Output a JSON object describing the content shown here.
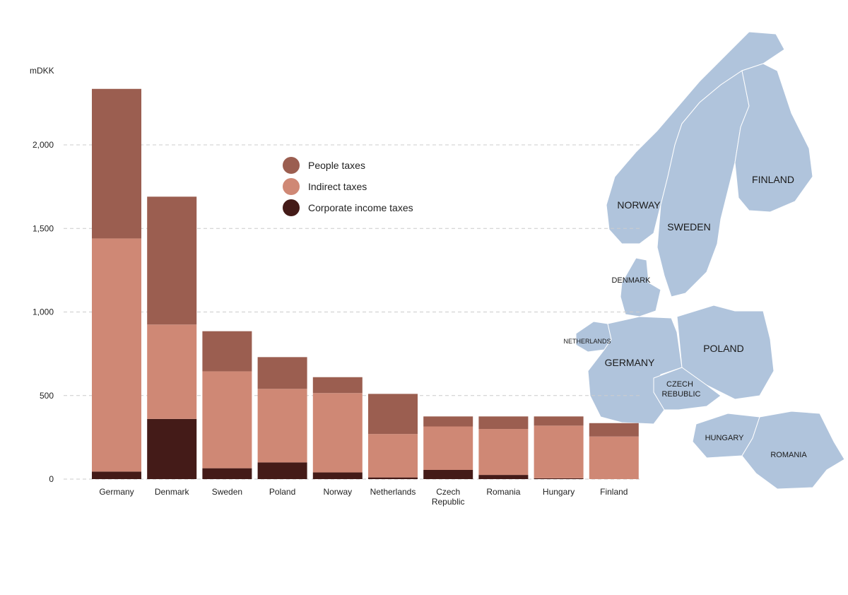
{
  "chart_data": {
    "type": "bar",
    "stacked": true,
    "unit_label": "mDKK",
    "ylim": [
      0,
      2400
    ],
    "yticks": [
      0,
      500,
      1000,
      1500,
      2000
    ],
    "ytick_labels": [
      "0",
      "500",
      "1,000",
      "1,500",
      "2,000"
    ],
    "grid": true,
    "legend_position": "top-center",
    "categories": [
      [
        "Germany"
      ],
      [
        "Denmark"
      ],
      [
        "Sweden"
      ],
      [
        "Poland"
      ],
      [
        "Norway"
      ],
      [
        "Netherlands"
      ],
      [
        "Czech",
        "Republic"
      ],
      [
        "Romania"
      ],
      [
        "Hungary"
      ],
      [
        "Finland"
      ]
    ],
    "series": [
      {
        "name": "Corporate income taxes",
        "color": "#441b18",
        "values": [
          45,
          360,
          65,
          100,
          40,
          10,
          55,
          25,
          5,
          0
        ]
      },
      {
        "name": "Indirect taxes",
        "color": "#cf8875",
        "values": [
          1395,
          565,
          580,
          440,
          475,
          260,
          260,
          275,
          315,
          255
        ]
      },
      {
        "name": "People taxes",
        "color": "#9b5e50",
        "values": [
          895,
          765,
          240,
          190,
          95,
          240,
          60,
          75,
          55,
          80
        ]
      }
    ],
    "legend_order": [
      2,
      1,
      0
    ]
  },
  "map": {
    "land_color": "#b0c4dc",
    "border_color": "#ffffff",
    "countries": {
      "norway": "NORWAY",
      "sweden": "SWEDEN",
      "finland": "FINLAND",
      "denmark": "DENMARK",
      "netherlands": "NETHERLANDS",
      "germany": "GERMANY",
      "poland": "POLAND",
      "czech": [
        "CZECH",
        "REBUBLIC"
      ],
      "hungary": "HUNGARY",
      "romania": "ROMANIA"
    }
  }
}
